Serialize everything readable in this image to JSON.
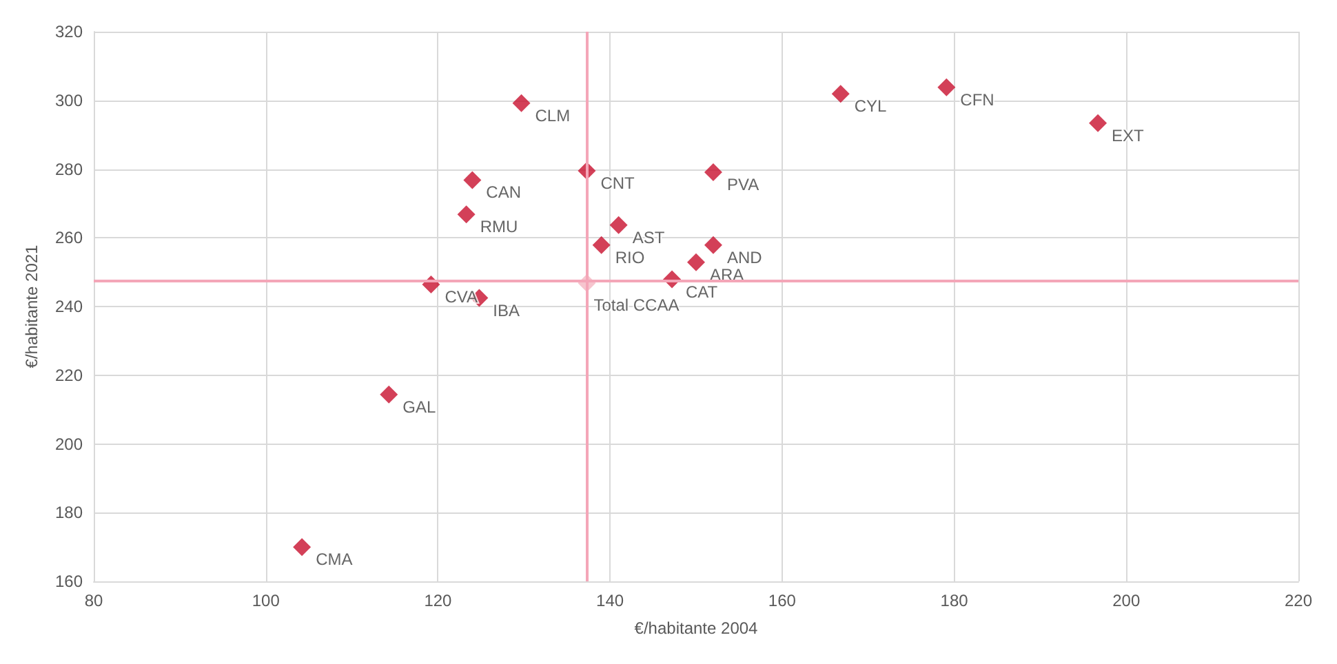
{
  "chart_data": {
    "type": "scatter",
    "xlabel": "€/habitante 2004",
    "ylabel": "€/habitante 2021",
    "xlim": [
      80,
      220
    ],
    "xticks": [
      80,
      100,
      120,
      140,
      160,
      180,
      200,
      220
    ],
    "ylim": [
      160,
      320
    ],
    "yticks": [
      160,
      180,
      200,
      220,
      240,
      260,
      280,
      300,
      320
    ],
    "grid": true,
    "marker": "diamond",
    "series": [
      {
        "color": "#c8102e",
        "x": [
          104.2,
          114.3,
          119.2,
          124.8,
          123.3,
          124.0,
          129.7,
          137.3,
          139.0,
          141.0,
          147.2,
          150.0,
          152.0,
          152.0,
          166.8,
          179.1,
          196.7
        ],
        "values": [
          170,
          214.4,
          246.4,
          242.5,
          266.8,
          276.8,
          299.2,
          279.5,
          257.9,
          263.7,
          247.9,
          252.9,
          257.9,
          279.1,
          301.9,
          303.8,
          293.4
        ]
      },
      {
        "color": "#f4b6c2",
        "x": [
          137.3
        ],
        "values": [
          246.8
        ]
      }
    ],
    "ref_lines": [
      {
        "axis": "x",
        "value": 137.3,
        "color": "#f4a6b8"
      },
      {
        "axis": "y",
        "value": 247.5,
        "color": "#f4a6b8"
      }
    ],
    "annotations": [
      {
        "text": "CMA",
        "x": 104.2,
        "y": 170
      },
      {
        "text": "GAL",
        "x": 114.3,
        "y": 214.4
      },
      {
        "text": "CVA",
        "x": 119.2,
        "y": 246.4
      },
      {
        "text": "IBA",
        "x": 124.8,
        "y": 242.5
      },
      {
        "text": "RMU",
        "x": 123.3,
        "y": 266.8
      },
      {
        "text": "CAN",
        "x": 124.0,
        "y": 276.8
      },
      {
        "text": "CLM",
        "x": 129.7,
        "y": 299.2
      },
      {
        "text": "CNT",
        "x": 137.3,
        "y": 279.5
      },
      {
        "text": "RIO",
        "x": 139.0,
        "y": 257.9
      },
      {
        "text": "AST",
        "x": 141.0,
        "y": 263.7
      },
      {
        "text": "CAT",
        "x": 147.2,
        "y": 247.9
      },
      {
        "text": "ARA",
        "x": 150.0,
        "y": 252.9
      },
      {
        "text": "AND",
        "x": 152.0,
        "y": 257.9
      },
      {
        "text": "PVA",
        "x": 152.0,
        "y": 279.1
      },
      {
        "text": "CYL",
        "x": 166.8,
        "y": 301.9
      },
      {
        "text": "CFN",
        "x": 179.1,
        "y": 303.8
      },
      {
        "text": "EXT",
        "x": 196.7,
        "y": 293.4
      },
      {
        "text": "Total CCAA",
        "x": 137.3,
        "y": 246.8
      }
    ]
  }
}
